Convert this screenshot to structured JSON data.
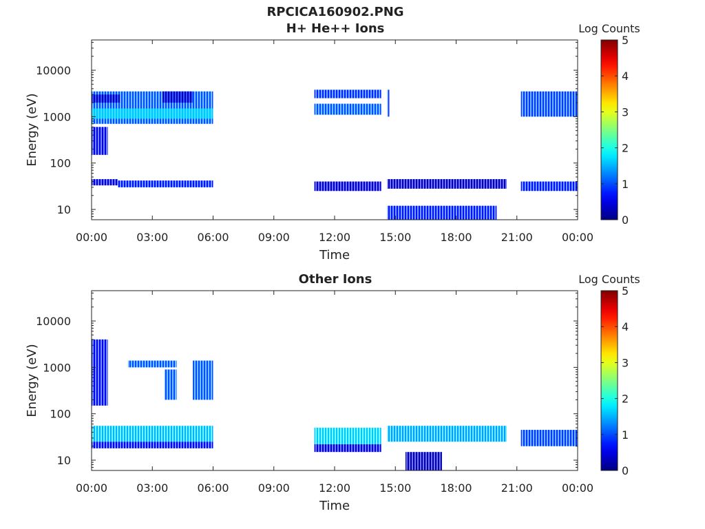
{
  "figure": {
    "title": "RPCICA160902.PNG"
  },
  "chart_data": [
    {
      "type": "heatmap",
      "title": "H+ He++ Ions",
      "xlabel": "Time",
      "ylabel": "Energy (eV)",
      "x_ticks": [
        "00:00",
        "03:00",
        "06:00",
        "09:00",
        "12:00",
        "15:00",
        "18:00",
        "21:00",
        "00:00"
      ],
      "x_range_hours": [
        0,
        24
      ],
      "y_scale": "log",
      "y_ticks": [
        "10",
        "100",
        "1000",
        "10000"
      ],
      "y_range": [
        6,
        45000
      ],
      "colorbar": {
        "label": "Log Counts",
        "ticks": [
          "0",
          "1",
          "2",
          "3",
          "4",
          "5"
        ],
        "range": [
          0,
          5
        ],
        "colormap": "jet"
      },
      "regions": [
        {
          "t0": 0.0,
          "t1": 6.0,
          "e0": 700,
          "e1": 3500,
          "level": 1.0
        },
        {
          "t0": 0.0,
          "t1": 1.4,
          "e0": 2000,
          "e1": 3000,
          "level": 0.3
        },
        {
          "t0": 3.5,
          "t1": 5.0,
          "e0": 2000,
          "e1": 3500,
          "level": 0.3
        },
        {
          "t0": 0.0,
          "t1": 6.0,
          "e0": 900,
          "e1": 1500,
          "level": 1.6
        },
        {
          "t0": 0.0,
          "t1": 0.8,
          "e0": 150,
          "e1": 600,
          "level": 0.5
        },
        {
          "t0": 0.0,
          "t1": 1.3,
          "e0": 33,
          "e1": 45,
          "level": 0.4
        },
        {
          "t0": 1.3,
          "t1": 6.0,
          "e0": 30,
          "e1": 42,
          "level": 0.7
        },
        {
          "t0": 11.0,
          "t1": 14.3,
          "e0": 2500,
          "e1": 3800,
          "level": 0.8
        },
        {
          "t0": 11.0,
          "t1": 14.3,
          "e0": 1100,
          "e1": 1900,
          "level": 1.0
        },
        {
          "t0": 14.6,
          "t1": 14.7,
          "e0": 1000,
          "e1": 3800,
          "level": 0.8
        },
        {
          "t0": 11.0,
          "t1": 14.3,
          "e0": 25,
          "e1": 40,
          "level": 0.35
        },
        {
          "t0": 14.6,
          "t1": 20.5,
          "e0": 28,
          "e1": 45,
          "level": 0.25
        },
        {
          "t0": 14.6,
          "t1": 20.0,
          "e0": 6,
          "e1": 12,
          "level": 0.7
        },
        {
          "t0": 21.2,
          "t1": 24.0,
          "e0": 1000,
          "e1": 3500,
          "level": 0.9
        },
        {
          "t0": 21.2,
          "t1": 24.0,
          "e0": 25,
          "e1": 40,
          "level": 0.7
        }
      ]
    },
    {
      "type": "heatmap",
      "title": "Other Ions",
      "xlabel": "Time",
      "ylabel": "Energy (eV)",
      "x_ticks": [
        "00:00",
        "03:00",
        "06:00",
        "09:00",
        "12:00",
        "15:00",
        "18:00",
        "21:00",
        "00:00"
      ],
      "x_range_hours": [
        0,
        24
      ],
      "y_scale": "log",
      "y_ticks": [
        "10",
        "100",
        "1000",
        "10000"
      ],
      "y_range": [
        6,
        45000
      ],
      "colorbar": {
        "label": "Log Counts",
        "ticks": [
          "0",
          "1",
          "2",
          "3",
          "4",
          "5"
        ],
        "range": [
          0,
          5
        ],
        "colormap": "jet"
      },
      "regions": [
        {
          "t0": 0.0,
          "t1": 0.8,
          "e0": 150,
          "e1": 4000,
          "level": 0.6
        },
        {
          "t0": 1.8,
          "t1": 4.2,
          "e0": 1000,
          "e1": 1400,
          "level": 1.0
        },
        {
          "t0": 3.6,
          "t1": 4.2,
          "e0": 200,
          "e1": 900,
          "level": 1.0
        },
        {
          "t0": 5.0,
          "t1": 6.0,
          "e0": 200,
          "e1": 1400,
          "level": 1.0
        },
        {
          "t0": 0.0,
          "t1": 6.0,
          "e0": 25,
          "e1": 55,
          "level": 1.5
        },
        {
          "t0": 0.0,
          "t1": 6.0,
          "e0": 18,
          "e1": 25,
          "level": 0.6
        },
        {
          "t0": 11.0,
          "t1": 14.3,
          "e0": 22,
          "e1": 50,
          "level": 1.6
        },
        {
          "t0": 11.0,
          "t1": 14.3,
          "e0": 15,
          "e1": 22,
          "level": 0.4
        },
        {
          "t0": 14.6,
          "t1": 20.5,
          "e0": 25,
          "e1": 55,
          "level": 1.4
        },
        {
          "t0": 15.5,
          "t1": 17.3,
          "e0": 6,
          "e1": 15,
          "level": 0.2
        },
        {
          "t0": 21.2,
          "t1": 24.0,
          "e0": 20,
          "e1": 45,
          "level": 0.9
        }
      ]
    }
  ]
}
